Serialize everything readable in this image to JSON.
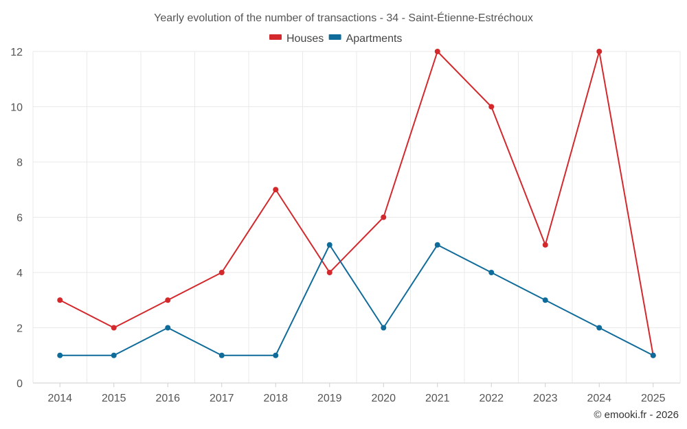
{
  "chart_data": {
    "type": "line",
    "title": "Yearly evolution of the number of transactions - 34 - Saint-Étienne-Estréchoux",
    "categories": [
      "2014",
      "2015",
      "2016",
      "2017",
      "2018",
      "2019",
      "2020",
      "2021",
      "2022",
      "2023",
      "2024",
      "2025"
    ],
    "series": [
      {
        "name": "Houses",
        "color": "#d3282c",
        "values": [
          3,
          2,
          3,
          4,
          7,
          4,
          6,
          12,
          10,
          5,
          12,
          1
        ]
      },
      {
        "name": "Apartments",
        "color": "#0f6b9a",
        "values": [
          1,
          1,
          2,
          1,
          1,
          5,
          2,
          5,
          4,
          3,
          2,
          1
        ]
      }
    ],
    "yticks": [
      "0",
      "2",
      "4",
      "6",
      "8",
      "10",
      "12"
    ],
    "ylim": [
      0,
      12
    ],
    "xlabel": "",
    "ylabel": "",
    "grid": true,
    "legend_position": "top-center"
  },
  "credit": "© emooki.fr - 2026"
}
